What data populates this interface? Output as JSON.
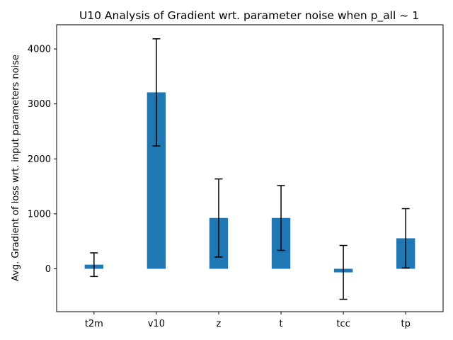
{
  "chart_data": {
    "type": "bar",
    "title": "U10 Analysis of Gradient wrt. parameter noise when p_all ~ 1",
    "xlabel": "",
    "ylabel": "Avg. Gradient of loss wrt. input parameters noise",
    "categories": [
      "t2m",
      "v10",
      "z",
      "t",
      "tcc",
      "tp"
    ],
    "series": [
      {
        "values": [
          75,
          3210,
          925,
          925,
          -65,
          555
        ],
        "error": [
          215,
          975,
          710,
          590,
          490,
          540
        ]
      }
    ],
    "ylim": [
      -780,
      4440
    ],
    "yticks": [
      0,
      1000,
      2000,
      3000,
      4000
    ],
    "grid": false,
    "legend": "none",
    "bar_color": "#1f77b4",
    "errorbar_color": "#000000"
  }
}
